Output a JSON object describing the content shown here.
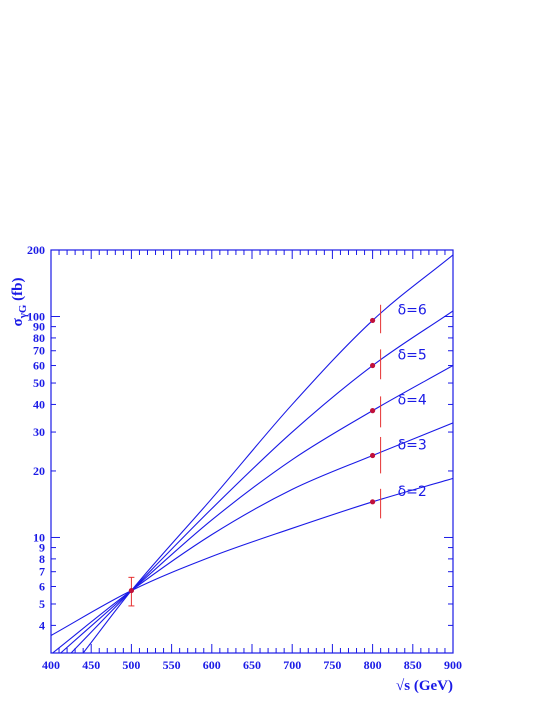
{
  "chart_data": {
    "type": "line",
    "title": "",
    "xlabel": "√s (GeV)",
    "ylabel": "σγG (fb)",
    "ylabel_main": "σ",
    "ylabel_sub": "γG",
    "ylabel_tail": " (fb)",
    "xlim": [
      400,
      900
    ],
    "ylim": [
      3,
      200
    ],
    "yscale": "log",
    "x_ticks": [
      400,
      450,
      500,
      550,
      600,
      650,
      700,
      750,
      800,
      850,
      900
    ],
    "y_ticks": [
      4,
      5,
      6,
      7,
      8,
      9,
      10,
      20,
      30,
      40,
      50,
      60,
      70,
      80,
      90,
      100,
      200
    ],
    "grid": false,
    "legend": "none",
    "colors": {
      "curve": "#1a1ae6",
      "error_bar": "#e63232",
      "point": "#c0103a",
      "axes": "#1a1ae6"
    },
    "common_point": {
      "x": 500,
      "y": 5.75,
      "err_low": 4.9,
      "err_high": 6.6
    },
    "series": [
      {
        "name": "δ=6",
        "x": [
          440,
          500,
          600,
          700,
          800,
          900
        ],
        "y": [
          3.0,
          5.75,
          15.0,
          40,
          96,
          190
        ],
        "marker": {
          "x": 800,
          "y": 96,
          "err_low": 84,
          "err_high": 113
        }
      },
      {
        "name": "δ=5",
        "x": [
          425,
          500,
          600,
          700,
          800,
          900
        ],
        "y": [
          3.0,
          5.75,
          13.5,
          30,
          60,
          106
        ],
        "marker": {
          "x": 800,
          "y": 60,
          "err_low": 52,
          "err_high": 71
        }
      },
      {
        "name": "δ=4",
        "x": [
          412,
          500,
          600,
          700,
          800,
          900
        ],
        "y": [
          3.0,
          5.75,
          12.0,
          22.5,
          37.5,
          60
        ],
        "marker": {
          "x": 800,
          "y": 37.5,
          "err_low": 31.5,
          "err_high": 43.5
        }
      },
      {
        "name": "δ=3",
        "x": [
          402,
          500,
          600,
          700,
          800,
          900
        ],
        "y": [
          3.0,
          5.75,
          10.3,
          16.5,
          23.5,
          33
        ],
        "marker": {
          "x": 800,
          "y": 23.5,
          "err_low": 19.5,
          "err_high": 28.5
        }
      },
      {
        "name": "δ=2",
        "x": [
          400,
          500,
          600,
          700,
          800,
          900
        ],
        "y": [
          3.6,
          5.75,
          8.2,
          11.0,
          14.5,
          18.5
        ],
        "marker": {
          "x": 800,
          "y": 14.5,
          "err_low": 12.2,
          "err_high": 16.6
        }
      }
    ]
  }
}
